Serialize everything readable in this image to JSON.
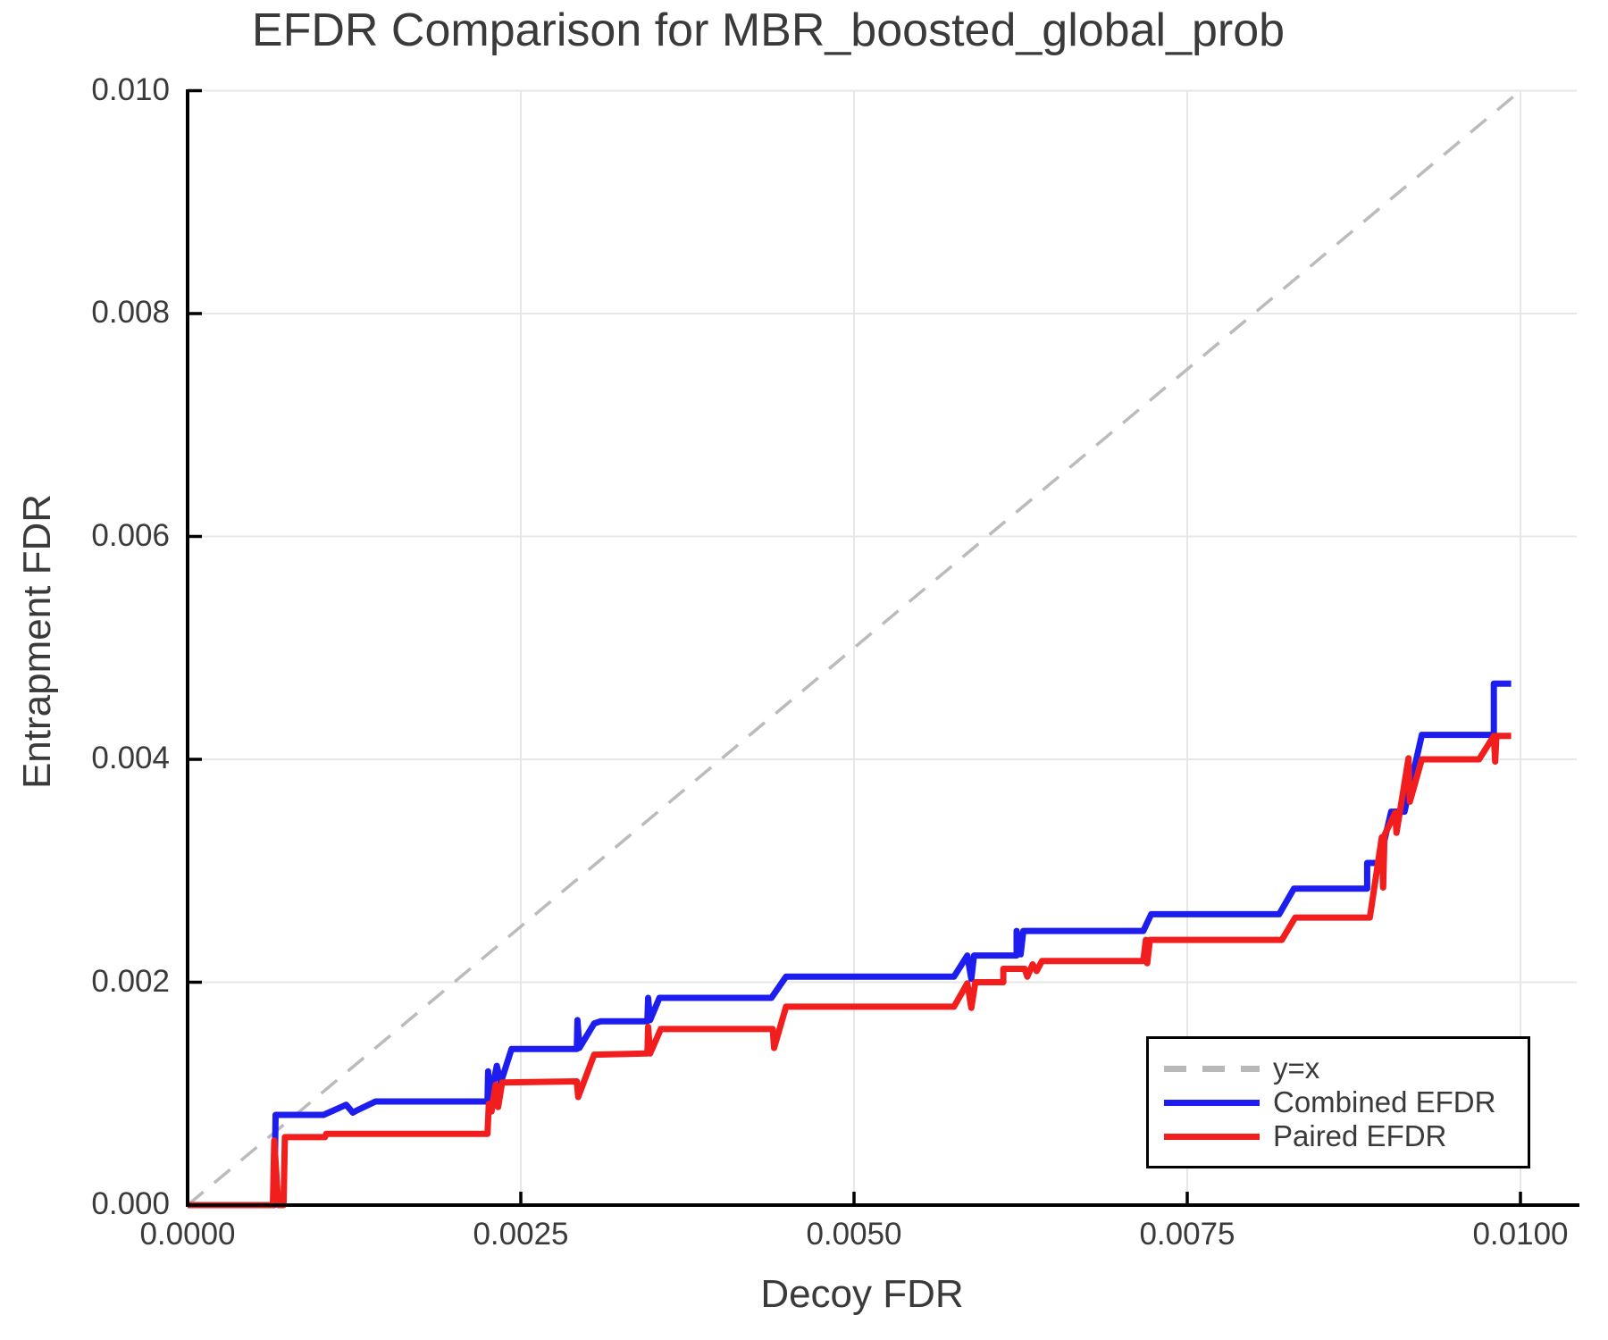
{
  "title": "EFDR Comparison for MBR_boosted_global_prob",
  "axes": {
    "xlabel": "Decoy FDR",
    "ylabel": "Entrapment FDR"
  },
  "legend": {
    "position": "lower right",
    "items": [
      {
        "label": "y=x",
        "color": "#b8b8b8",
        "style": "dashed"
      },
      {
        "label": "Combined EFDR",
        "color": "#1d1df0",
        "style": "solid"
      },
      {
        "label": "Paired EFDR",
        "color": "#f21d1d",
        "style": "solid"
      }
    ]
  },
  "chart_data": {
    "type": "line",
    "title": "EFDR Comparison for MBR_boosted_global_prob",
    "xlabel": "Decoy FDR",
    "ylabel": "Entrapment FDR",
    "xlim": [
      0.0,
      0.0104
    ],
    "ylim": [
      0.0,
      0.0101
    ],
    "grid": true,
    "legend_position": "lower right",
    "xticks": [
      0.0,
      0.0025,
      0.005,
      0.0075,
      0.01
    ],
    "xtick_labels": [
      "0.0000",
      "0.0025",
      "0.0050",
      "0.0075",
      "0.0100"
    ],
    "yticks": [
      0.0,
      0.002,
      0.004,
      0.006,
      0.008,
      0.01
    ],
    "ytick_labels": [
      "0.000",
      "0.002",
      "0.004",
      "0.006",
      "0.008",
      "0.010"
    ],
    "series": [
      {
        "name": "y=x",
        "color": "#bbbbbb",
        "style": "dashed",
        "points": [
          [
            0.0,
            0.0
          ],
          [
            0.01,
            0.01
          ]
        ]
      },
      {
        "name": "Combined EFDR",
        "color": "#1d1df0",
        "style": "solid",
        "points": [
          [
            0.0,
            0.0
          ],
          [
            0.00065,
            0.0
          ],
          [
            0.00066,
            0.00081
          ],
          [
            0.00102,
            0.00081
          ],
          [
            0.00119,
            0.0009
          ],
          [
            0.00124,
            0.00083
          ],
          [
            0.00127,
            0.00085
          ],
          [
            0.00141,
            0.00093
          ],
          [
            0.00225,
            0.00093
          ],
          [
            0.002255,
            0.0012
          ],
          [
            0.00227,
            0.00095
          ],
          [
            0.00232,
            0.00125
          ],
          [
            0.00235,
            0.0011
          ],
          [
            0.00243,
            0.0014
          ],
          [
            0.00292,
            0.0014
          ],
          [
            0.002925,
            0.00166
          ],
          [
            0.00294,
            0.00141
          ],
          [
            0.00305,
            0.00163
          ],
          [
            0.0031,
            0.00165
          ],
          [
            0.00345,
            0.00165
          ],
          [
            0.003455,
            0.00186
          ],
          [
            0.00347,
            0.00166
          ],
          [
            0.00354,
            0.00186
          ],
          [
            0.00438,
            0.00186
          ],
          [
            0.00449,
            0.00205
          ],
          [
            0.00575,
            0.00205
          ],
          [
            0.00585,
            0.00224
          ],
          [
            0.00588,
            0.00203
          ],
          [
            0.0059,
            0.00224
          ],
          [
            0.00622,
            0.00224
          ],
          [
            0.00622,
            0.00246
          ],
          [
            0.00625,
            0.00225
          ],
          [
            0.00627,
            0.00246
          ],
          [
            0.00717,
            0.00246
          ],
          [
            0.00723,
            0.00261
          ],
          [
            0.00819,
            0.00261
          ],
          [
            0.0083,
            0.00284
          ],
          [
            0.00885,
            0.00284
          ],
          [
            0.00885,
            0.00307
          ],
          [
            0.00894,
            0.00307
          ],
          [
            0.00903,
            0.00353
          ],
          [
            0.00913,
            0.00353
          ],
          [
            0.00926,
            0.00422
          ],
          [
            0.0098,
            0.00422
          ],
          [
            0.0098,
            0.00468
          ],
          [
            0.00993,
            0.00468
          ]
        ]
      },
      {
        "name": "Paired EFDR",
        "color": "#f21d1d",
        "style": "solid",
        "points": [
          [
            0.0,
            0.0
          ],
          [
            0.00064,
            0.0
          ],
          [
            0.00065,
            0.00058
          ],
          [
            0.00068,
            0.0
          ],
          [
            0.00072,
            0.0
          ],
          [
            0.00073,
            0.00061
          ],
          [
            0.00103,
            0.00061
          ],
          [
            0.00104,
            0.00064
          ],
          [
            0.00225,
            0.00064
          ],
          [
            0.00226,
            0.00091
          ],
          [
            0.00228,
            0.00084
          ],
          [
            0.00231,
            0.00108
          ],
          [
            0.00233,
            0.00088
          ],
          [
            0.00236,
            0.0011
          ],
          [
            0.00292,
            0.00111
          ],
          [
            0.00293,
            0.00097
          ],
          [
            0.00305,
            0.00135
          ],
          [
            0.00345,
            0.00136
          ],
          [
            0.003455,
            0.0016
          ],
          [
            0.00347,
            0.00136
          ],
          [
            0.00355,
            0.00158
          ],
          [
            0.00439,
            0.00158
          ],
          [
            0.0044,
            0.00141
          ],
          [
            0.00449,
            0.00178
          ],
          [
            0.00575,
            0.00178
          ],
          [
            0.00585,
            0.00199
          ],
          [
            0.00588,
            0.00177
          ],
          [
            0.00591,
            0.002
          ],
          [
            0.00612,
            0.002
          ],
          [
            0.00612,
            0.00212
          ],
          [
            0.00628,
            0.00212
          ],
          [
            0.0063,
            0.00205
          ],
          [
            0.00634,
            0.00216
          ],
          [
            0.00637,
            0.0021
          ],
          [
            0.00641,
            0.00219
          ],
          [
            0.00717,
            0.00219
          ],
          [
            0.00719,
            0.00238
          ],
          [
            0.0072,
            0.00217
          ],
          [
            0.00722,
            0.00238
          ],
          [
            0.00821,
            0.00238
          ],
          [
            0.00831,
            0.00258
          ],
          [
            0.00887,
            0.00258
          ],
          [
            0.00896,
            0.0033
          ],
          [
            0.00897,
            0.00285
          ],
          [
            0.00898,
            0.00332
          ],
          [
            0.00906,
            0.00352
          ],
          [
            0.00907,
            0.00334
          ],
          [
            0.00916,
            0.00401
          ],
          [
            0.00917,
            0.00362
          ],
          [
            0.00926,
            0.004
          ],
          [
            0.00969,
            0.004
          ],
          [
            0.0098,
            0.00421
          ],
          [
            0.00981,
            0.00398
          ],
          [
            0.00982,
            0.00421
          ],
          [
            0.00993,
            0.00421
          ]
        ]
      }
    ]
  }
}
